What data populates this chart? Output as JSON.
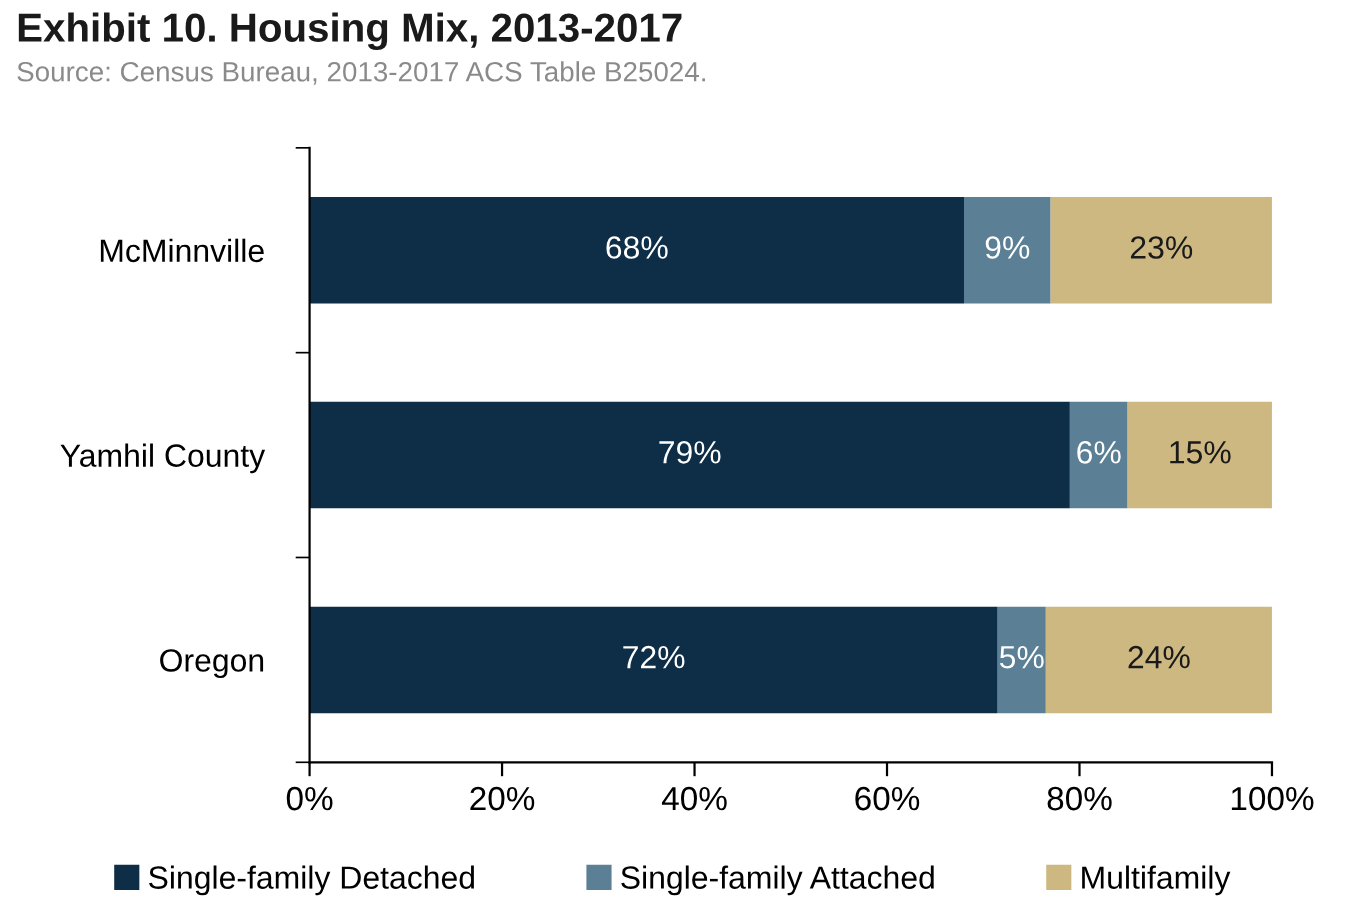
{
  "chart_data": {
    "type": "bar",
    "orientation": "horizontal",
    "stacked": true,
    "title": "Exhibit 10. Housing Mix, 2013-2017",
    "subtitle": "Source: Census Bureau, 2013-2017 ACS Table B25024.",
    "categories": [
      "McMinnville",
      "Yamhil County",
      "Oregon"
    ],
    "series": [
      {
        "name": "Single-family Detached",
        "color": "#0e2d47",
        "values": [
          68,
          79,
          71.5
        ],
        "value_labels": [
          "68%",
          "79%",
          "72%"
        ]
      },
      {
        "name": "Single-family Attached",
        "color": "#5b7f95",
        "values": [
          9,
          6,
          5
        ],
        "value_labels": [
          "9%",
          "6%",
          "5%"
        ]
      },
      {
        "name": "Multifamily",
        "color": "#cdb882",
        "values": [
          23,
          15,
          23.5
        ],
        "value_labels": [
          "23%",
          "15%",
          "24%"
        ]
      }
    ],
    "xlim": [
      0,
      100
    ],
    "xticks": [
      {
        "value": 0,
        "label": "0%"
      },
      {
        "value": 20,
        "label": "20%"
      },
      {
        "value": 40,
        "label": "40%"
      },
      {
        "value": 60,
        "label": "60%"
      },
      {
        "value": 80,
        "label": "80%"
      },
      {
        "value": 100,
        "label": "100%"
      }
    ],
    "grid": false,
    "legend": "bottom"
  }
}
